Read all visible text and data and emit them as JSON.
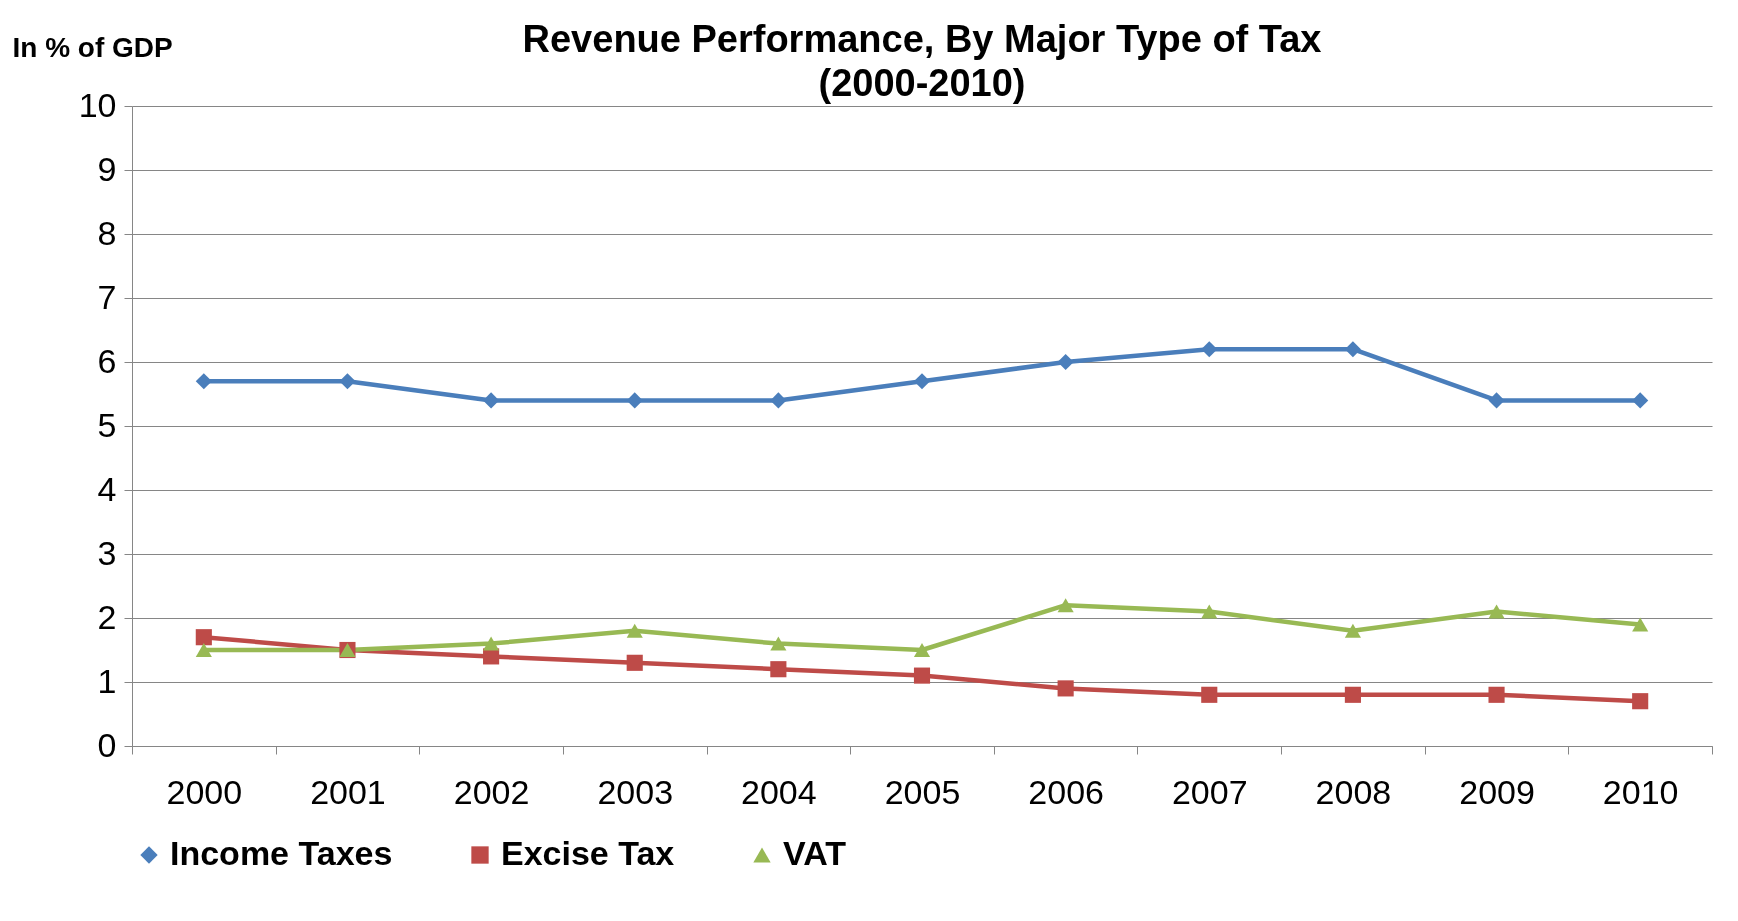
{
  "chart_data": {
    "type": "line",
    "title": "Revenue Performance, By Major Type of Tax\n(2000-2010)",
    "ylabel": "In % of GDP",
    "categories": [
      "2000",
      "2001",
      "2002",
      "2003",
      "2004",
      "2005",
      "2006",
      "2007",
      "2008",
      "2009",
      "2010"
    ],
    "series": [
      {
        "name": "Income Taxes",
        "color": "#4a7ebb",
        "marker": "diamond",
        "values": [
          5.7,
          5.7,
          5.4,
          5.4,
          5.4,
          5.7,
          6.0,
          6.2,
          6.2,
          5.4,
          5.4
        ]
      },
      {
        "name": "Excise Tax",
        "color": "#be4b48",
        "marker": "square",
        "values": [
          1.7,
          1.5,
          1.4,
          1.3,
          1.2,
          1.1,
          0.9,
          0.8,
          0.8,
          0.8,
          0.7
        ]
      },
      {
        "name": "VAT",
        "color": "#98b954",
        "marker": "triangle",
        "values": [
          1.5,
          1.5,
          1.6,
          1.8,
          1.6,
          1.5,
          2.2,
          2.1,
          1.8,
          2.1,
          1.9
        ]
      }
    ],
    "ylim": [
      0,
      10
    ],
    "yticks": [
      0,
      1,
      2,
      3,
      4,
      5,
      6,
      7,
      8,
      9,
      10
    ],
    "grid": "y",
    "legend": "bottom",
    "line_style": "solid"
  }
}
